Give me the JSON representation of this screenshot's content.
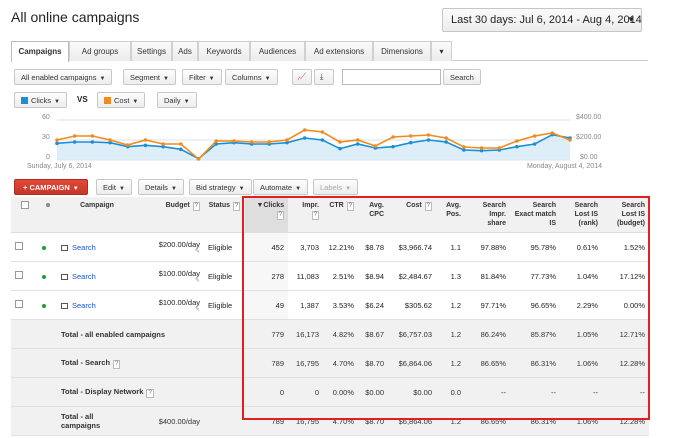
{
  "header": {
    "title": "All online campaigns",
    "date_range": "Last 30 days: Jul 6, 2014 - Aug 4, 2014"
  },
  "tabs": [
    "Campaigns",
    "Ad groups",
    "Settings",
    "Ads",
    "Keywords",
    "Audiences",
    "Ad extensions",
    "Dimensions"
  ],
  "toolbar": {
    "status_filter": "All enabled campaigns",
    "segment": "Segment",
    "filter": "Filter",
    "columns": "Columns",
    "search": "Search",
    "metric1": "Clicks",
    "vs": "VS",
    "metric2": "Cost",
    "granularity": "Daily"
  },
  "chart_data": {
    "type": "line",
    "title": "",
    "y_left_ticks": [
      "60",
      "30",
      "0"
    ],
    "y_right_ticks": [
      "$400.00",
      "$200.00",
      "$0.00"
    ],
    "start_label": "Sunday, July 6, 2014",
    "end_label": "Monday, August 4, 2014",
    "ylim_left": [
      0,
      60
    ],
    "ylim_right": [
      0,
      400
    ],
    "series": [
      {
        "name": "Clicks",
        "color": "#1a8fd8",
        "values": [
          25,
          27,
          27,
          26,
          20,
          22,
          20,
          16,
          2,
          24,
          26,
          24,
          24,
          26,
          33,
          30,
          17,
          24,
          18,
          20,
          26,
          30,
          27,
          15,
          14,
          15,
          20,
          24,
          38,
          33
        ]
      },
      {
        "name": "Cost",
        "color": "#f08c1e",
        "values": [
          200,
          240,
          240,
          200,
          150,
          200,
          160,
          160,
          10,
          190,
          190,
          180,
          180,
          200,
          300,
          280,
          180,
          200,
          140,
          230,
          240,
          250,
          220,
          130,
          120,
          120,
          190,
          240,
          270,
          200
        ]
      }
    ]
  },
  "actions": {
    "campaign": "+ CAMPAIGN",
    "edit": "Edit",
    "details": "Details",
    "bid_strategy": "Bid strategy",
    "automate": "Automate",
    "labels": "Labels"
  },
  "table": {
    "headers": {
      "campaign": "Campaign",
      "budget": "Budget",
      "status": "Status",
      "clicks": "Clicks",
      "impr": "Impr.",
      "ctr": "CTR",
      "avg_cpc": "Avg. CPC",
      "cost": "Cost",
      "avg_pos": "Avg. Pos.",
      "search_impr_share": "Search Impr. share",
      "search_exact": "Search Exact match IS",
      "lost_rank": "Search Lost IS (rank)",
      "lost_budget": "Search Lost IS (budget)"
    },
    "rows": [
      {
        "campaign": "Search",
        "budget": "$200.00/day",
        "status": "Eligible",
        "clicks": "452",
        "impr": "3,703",
        "ctr": "12.21%",
        "cpc": "$8.78",
        "cost": "$3,966.74",
        "pos": "1.1",
        "sis": "97.88%",
        "sem": "95.78%",
        "lr": "0.61%",
        "lb": "1.52%"
      },
      {
        "campaign": "Search",
        "budget": "$100.00/day",
        "status": "Eligible",
        "clicks": "278",
        "impr": "11,083",
        "ctr": "2.51%",
        "cpc": "$8.94",
        "cost": "$2,484.67",
        "pos": "1.3",
        "sis": "81.84%",
        "sem": "77.73%",
        "lr": "1.04%",
        "lb": "17.12%"
      },
      {
        "campaign": "Search",
        "budget": "$100.00/day",
        "status": "Eligible",
        "clicks": "49",
        "impr": "1,387",
        "ctr": "3.53%",
        "cpc": "$6.24",
        "cost": "$305.62",
        "pos": "1.2",
        "sis": "97.71%",
        "sem": "96.65%",
        "lr": "2.29%",
        "lb": "0.00%"
      }
    ],
    "totals": [
      {
        "label": "Total - all enabled campaigns",
        "budget": "",
        "clicks": "779",
        "impr": "16,173",
        "ctr": "4.82%",
        "cpc": "$8.67",
        "cost": "$6,757.03",
        "pos": "1.2",
        "sis": "86.24%",
        "sem": "85.87%",
        "lr": "1.05%",
        "lb": "12.71%"
      },
      {
        "label": "Total - Search",
        "budget": "",
        "clicks": "789",
        "impr": "16,795",
        "ctr": "4.70%",
        "cpc": "$8.70",
        "cost": "$6,864.06",
        "pos": "1.2",
        "sis": "86.65%",
        "sem": "86.31%",
        "lr": "1.06%",
        "lb": "12.28%"
      },
      {
        "label": "Total - Display Network",
        "budget": "",
        "clicks": "0",
        "impr": "0",
        "ctr": "0.00%",
        "cpc": "$0.00",
        "cost": "$0.00",
        "pos": "0.0",
        "sis": "--",
        "sem": "--",
        "lr": "--",
        "lb": "--"
      },
      {
        "label": "Total - all campaigns",
        "budget": "$400.00/day",
        "clicks": "789",
        "impr": "16,795",
        "ctr": "4.70%",
        "cpc": "$8.70",
        "cost": "$6,864.06",
        "pos": "1.2",
        "sis": "86.65%",
        "sem": "86.31%",
        "lr": "1.06%",
        "lb": "12.28%"
      }
    ]
  }
}
